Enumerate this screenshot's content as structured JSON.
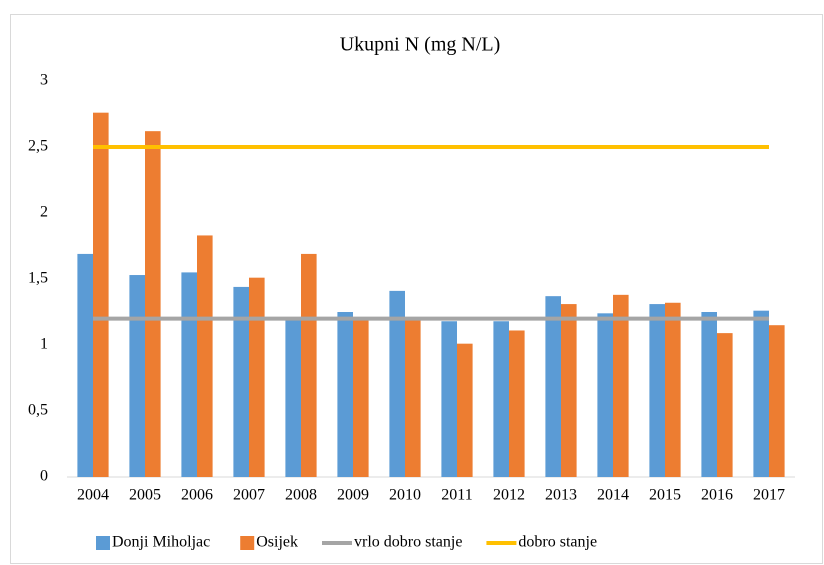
{
  "chart_data": {
    "type": "bar",
    "title": "Ukupni N (mg N/L)",
    "categories": [
      "2004",
      "2005",
      "2006",
      "2007",
      "2008",
      "2009",
      "2010",
      "2011",
      "2012",
      "2013",
      "2014",
      "2015",
      "2016",
      "2017"
    ],
    "series": [
      {
        "name": "Donji Miholjac",
        "type": "bar",
        "color": "#5b9bd5",
        "values": [
          1.69,
          1.53,
          1.55,
          1.44,
          1.2,
          1.25,
          1.41,
          1.18,
          1.18,
          1.37,
          1.24,
          1.31,
          1.25,
          1.26
        ]
      },
      {
        "name": "Osijek",
        "type": "bar",
        "color": "#ed7d31",
        "values": [
          2.76,
          2.62,
          1.83,
          1.51,
          1.69,
          1.2,
          1.2,
          1.01,
          1.11,
          1.31,
          1.38,
          1.32,
          1.09,
          1.15
        ]
      },
      {
        "name": "vrlo dobro stanje",
        "type": "line",
        "color": "#a5a5a5",
        "values": [
          1.2,
          1.2,
          1.2,
          1.2,
          1.2,
          1.2,
          1.2,
          1.2,
          1.2,
          1.2,
          1.2,
          1.2,
          1.2,
          1.2
        ]
      },
      {
        "name": "dobro stanje",
        "type": "line",
        "color": "#ffc000",
        "values": [
          2.5,
          2.5,
          2.5,
          2.5,
          2.5,
          2.5,
          2.5,
          2.5,
          2.5,
          2.5,
          2.5,
          2.5,
          2.5,
          2.5
        ]
      }
    ],
    "ylim": [
      0,
      3
    ],
    "yticks": [
      0,
      {
        "value": 0.5,
        "label": "0,5"
      },
      1,
      {
        "value": 1.5,
        "label": "1,5"
      },
      2,
      {
        "value": 2.5,
        "label": "2,5"
      },
      3
    ],
    "grid": false,
    "legend": "bottom"
  }
}
